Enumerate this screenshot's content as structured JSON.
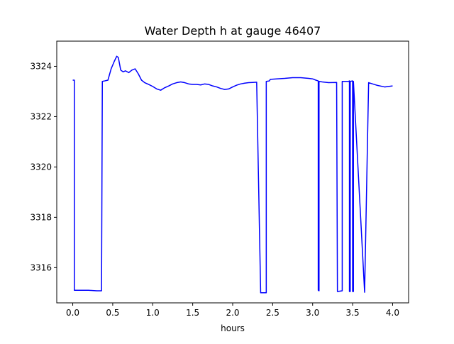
{
  "chart_data": {
    "type": "line",
    "title": "Water Depth h at gauge 46407",
    "xlabel": "hours",
    "ylabel": "",
    "xlim": [
      -0.2,
      4.2
    ],
    "ylim": [
      3314.6,
      3325.0
    ],
    "xticks": [
      0.0,
      0.5,
      1.0,
      1.5,
      2.0,
      2.5,
      3.0,
      3.5,
      4.0
    ],
    "xtick_labels": [
      "0.0",
      "0.5",
      "1.0",
      "1.5",
      "2.0",
      "2.5",
      "3.0",
      "3.5",
      "4.0"
    ],
    "yticks": [
      3316,
      3318,
      3320,
      3322,
      3324
    ],
    "ytick_labels": [
      "3316",
      "3318",
      "3320",
      "3322",
      "3324"
    ],
    "grid": false,
    "legend": "none",
    "line_color": "#0000ff",
    "series": [
      {
        "x": [
          0.0,
          0.02,
          0.02,
          0.1,
          0.2,
          0.3,
          0.36,
          0.37,
          0.4,
          0.44,
          0.48,
          0.52,
          0.55,
          0.57,
          0.6,
          0.63,
          0.66,
          0.7,
          0.74,
          0.78,
          0.82,
          0.86,
          0.9,
          0.95,
          1.0,
          1.05,
          1.1,
          1.15,
          1.2,
          1.25,
          1.3,
          1.35,
          1.4,
          1.45,
          1.5,
          1.55,
          1.6,
          1.65,
          1.7,
          1.75,
          1.8,
          1.85,
          1.9,
          1.95,
          2.0,
          2.05,
          2.1,
          2.15,
          2.2,
          2.25,
          2.3,
          2.35,
          2.4,
          2.42,
          2.42,
          2.46,
          2.47,
          2.55,
          2.65,
          2.75,
          2.85,
          2.95,
          3.0,
          3.04,
          3.07,
          3.07,
          3.08,
          3.08,
          3.12,
          3.2,
          3.3,
          3.31,
          3.31,
          3.37,
          3.37,
          3.45,
          3.46,
          3.46,
          3.47,
          3.47,
          3.5,
          3.5,
          3.51,
          3.51,
          3.65,
          3.65,
          3.7,
          3.8,
          3.9,
          3.95,
          4.0
        ],
        "y": [
          3323.45,
          3323.45,
          3315.1,
          3315.1,
          3315.1,
          3315.08,
          3315.08,
          3323.4,
          3323.42,
          3323.45,
          3323.9,
          3324.2,
          3324.4,
          3324.35,
          3323.85,
          3323.78,
          3323.82,
          3323.75,
          3323.85,
          3323.9,
          3323.7,
          3323.45,
          3323.35,
          3323.28,
          3323.2,
          3323.1,
          3323.05,
          3323.15,
          3323.22,
          3323.3,
          3323.35,
          3323.38,
          3323.35,
          3323.3,
          3323.28,
          3323.28,
          3323.26,
          3323.3,
          3323.28,
          3323.22,
          3323.18,
          3323.12,
          3323.08,
          3323.1,
          3323.18,
          3323.25,
          3323.3,
          3323.33,
          3323.35,
          3323.36,
          3323.37,
          3315.0,
          3315.0,
          3315.0,
          3323.4,
          3323.42,
          3323.48,
          3323.5,
          3323.52,
          3323.55,
          3323.55,
          3323.52,
          3323.5,
          3323.45,
          3323.42,
          3315.1,
          3315.08,
          3323.4,
          3323.38,
          3323.35,
          3323.36,
          3315.05,
          3315.05,
          3315.08,
          3323.4,
          3323.4,
          3323.42,
          3315.05,
          3315.05,
          3323.4,
          3323.42,
          3315.05,
          3315.05,
          3323.4,
          3315.02,
          3315.02,
          3323.35,
          3323.25,
          3323.18,
          3323.2,
          3323.22
        ]
      }
    ]
  }
}
